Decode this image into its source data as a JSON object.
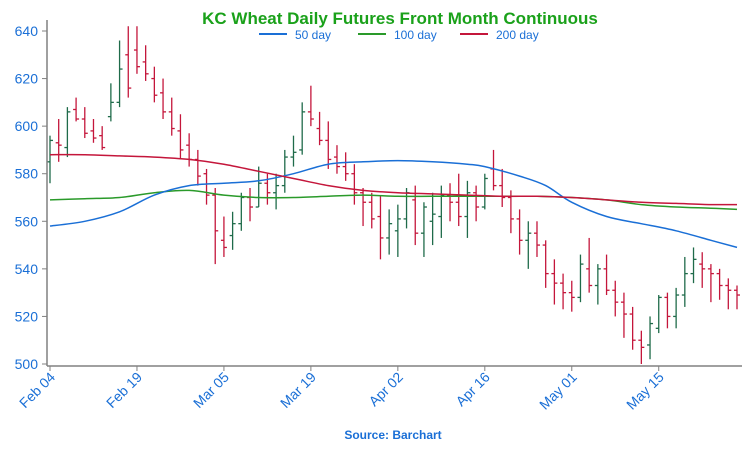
{
  "chart_data": {
    "type": "ohlc",
    "title": "KC Wheat Daily Futures Front Month Continuous",
    "source_label": "Source: Barchart",
    "colors": {
      "title": "#1aa11a",
      "axis_text": "#1a6fd6",
      "up": "#1f6b4a",
      "down": "#c4163b",
      "ma50": "#1a6fd6",
      "ma100": "#2a9a2a",
      "ma200": "#c4163b",
      "axis": "#808080"
    },
    "legend": [
      {
        "key": "ma50",
        "label": "50 day"
      },
      {
        "key": "ma100",
        "label": "100 day"
      },
      {
        "key": "ma200",
        "label": "200 day"
      }
    ],
    "ylim": [
      500,
      645
    ],
    "yticks": [
      500,
      520,
      540,
      560,
      580,
      600,
      620,
      640
    ],
    "x_labels": [
      {
        "label": "Feb 04",
        "index": 0
      },
      {
        "label": "Feb 19",
        "index": 10
      },
      {
        "label": "Mar 05",
        "index": 20
      },
      {
        "label": "Mar 19",
        "index": 30
      },
      {
        "label": "Apr 02",
        "index": 40
      },
      {
        "label": "Apr 16",
        "index": 50
      },
      {
        "label": "May 01",
        "index": 60
      },
      {
        "label": "May 15",
        "index": 70
      }
    ],
    "n_days": 80,
    "bars": [
      [
        585,
        596,
        576,
        594
      ],
      [
        593,
        603,
        585,
        592
      ],
      [
        591,
        608,
        587,
        606
      ],
      [
        607,
        612,
        602,
        603
      ],
      [
        603,
        608,
        595,
        597
      ],
      [
        598,
        603,
        593,
        595
      ],
      [
        596,
        600,
        590,
        591
      ],
      [
        604,
        618,
        602,
        610
      ],
      [
        610,
        636,
        608,
        624
      ],
      [
        630,
        642,
        612,
        616
      ],
      [
        632,
        642,
        622,
        625
      ],
      [
        627,
        634,
        619,
        622
      ],
      [
        620,
        625,
        610,
        613
      ],
      [
        614,
        620,
        603,
        606
      ],
      [
        606,
        612,
        596,
        599
      ],
      [
        598,
        605,
        586,
        590
      ],
      [
        592,
        597,
        583,
        586
      ],
      [
        586,
        590,
        575,
        579
      ],
      [
        580,
        582,
        567,
        571
      ],
      [
        571,
        574,
        542,
        556
      ],
      [
        552,
        562,
        545,
        549
      ],
      [
        554,
        564,
        548,
        559
      ],
      [
        559,
        572,
        556,
        570
      ],
      [
        570,
        574,
        560,
        566
      ],
      [
        566,
        583,
        566,
        576
      ],
      [
        576,
        580,
        567,
        572
      ],
      [
        572,
        580,
        565,
        575
      ],
      [
        575,
        590,
        572,
        587
      ],
      [
        587,
        596,
        583,
        589
      ],
      [
        590,
        610,
        588,
        606
      ],
      [
        606,
        617,
        600,
        603
      ],
      [
        599,
        606,
        592,
        594
      ],
      [
        594,
        602,
        582,
        586
      ],
      [
        587,
        592,
        580,
        583
      ],
      [
        583,
        589,
        577,
        580
      ],
      [
        580,
        584,
        567,
        572
      ],
      [
        572,
        574,
        558,
        568
      ],
      [
        568,
        572,
        557,
        561
      ],
      [
        562,
        571,
        544,
        553
      ],
      [
        553,
        565,
        546,
        559
      ],
      [
        556,
        567,
        545,
        561
      ],
      [
        561,
        574,
        557,
        572
      ],
      [
        569,
        575,
        550,
        555
      ],
      [
        555,
        568,
        545,
        566
      ],
      [
        560,
        572,
        550,
        563
      ],
      [
        562,
        575,
        553,
        571
      ],
      [
        571,
        576,
        560,
        568
      ],
      [
        568,
        580,
        558,
        562
      ],
      [
        562,
        577,
        553,
        572
      ],
      [
        572,
        575,
        560,
        566
      ],
      [
        566,
        580,
        565,
        578
      ],
      [
        582,
        590,
        573,
        575
      ],
      [
        575,
        582,
        566,
        570
      ],
      [
        570,
        573,
        555,
        561
      ],
      [
        561,
        565,
        546,
        552
      ],
      [
        552,
        560,
        540,
        555
      ],
      [
        555,
        560,
        545,
        550
      ],
      [
        550,
        552,
        532,
        538
      ],
      [
        538,
        544,
        525,
        534
      ],
      [
        534,
        538,
        523,
        530
      ],
      [
        530,
        535,
        522,
        528
      ],
      [
        528,
        546,
        526,
        542
      ],
      [
        540,
        553,
        530,
        533
      ],
      [
        533,
        542,
        525,
        540
      ],
      [
        540,
        546,
        529,
        531
      ],
      [
        531,
        535,
        520,
        526
      ],
      [
        526,
        530,
        511,
        521
      ],
      [
        521,
        524,
        506,
        510
      ],
      [
        510,
        514,
        500,
        507
      ],
      [
        508,
        520,
        502,
        517
      ],
      [
        515,
        529,
        513,
        528
      ],
      [
        528,
        530,
        515,
        520
      ],
      [
        520,
        532,
        515,
        529
      ],
      [
        529,
        545,
        524,
        538
      ],
      [
        538,
        549,
        534,
        544
      ],
      [
        542,
        547,
        532,
        540
      ],
      [
        540,
        542,
        526,
        538
      ],
      [
        538,
        540,
        527,
        533
      ],
      [
        533,
        536,
        523,
        531
      ],
      [
        531,
        533,
        523,
        529
      ]
    ],
    "ma50": [
      [
        0,
        558
      ],
      [
        4,
        560
      ],
      [
        8,
        564
      ],
      [
        12,
        571
      ],
      [
        16,
        575
      ],
      [
        20,
        576
      ],
      [
        24,
        577
      ],
      [
        28,
        580
      ],
      [
        32,
        584
      ],
      [
        36,
        585
      ],
      [
        40,
        585.5
      ],
      [
        44,
        585
      ],
      [
        48,
        584
      ],
      [
        50,
        583
      ],
      [
        54,
        579
      ],
      [
        57,
        575
      ],
      [
        60,
        568
      ],
      [
        64,
        562
      ],
      [
        68,
        559
      ],
      [
        72,
        556
      ],
      [
        76,
        552
      ],
      [
        79,
        549
      ]
    ],
    "ma100": [
      [
        0,
        569
      ],
      [
        4,
        569.5
      ],
      [
        8,
        570
      ],
      [
        12,
        572
      ],
      [
        16,
        573
      ],
      [
        20,
        571
      ],
      [
        24,
        570
      ],
      [
        28,
        570
      ],
      [
        32,
        570.5
      ],
      [
        36,
        571
      ],
      [
        40,
        570.5
      ],
      [
        44,
        570.5
      ],
      [
        48,
        570.5
      ],
      [
        52,
        570.5
      ],
      [
        56,
        570.5
      ],
      [
        60,
        570
      ],
      [
        64,
        569
      ],
      [
        68,
        567
      ],
      [
        72,
        566
      ],
      [
        76,
        565.5
      ],
      [
        79,
        565
      ]
    ],
    "ma200": [
      [
        0,
        588
      ],
      [
        4,
        588
      ],
      [
        8,
        587.5
      ],
      [
        12,
        587
      ],
      [
        16,
        586
      ],
      [
        20,
        584
      ],
      [
        24,
        581
      ],
      [
        28,
        578
      ],
      [
        32,
        575
      ],
      [
        36,
        573
      ],
      [
        40,
        572
      ],
      [
        44,
        571.5
      ],
      [
        48,
        571
      ],
      [
        52,
        570.5
      ],
      [
        56,
        570.5
      ],
      [
        60,
        570
      ],
      [
        64,
        569
      ],
      [
        68,
        568
      ],
      [
        72,
        567.5
      ],
      [
        76,
        567
      ],
      [
        79,
        567
      ]
    ]
  }
}
